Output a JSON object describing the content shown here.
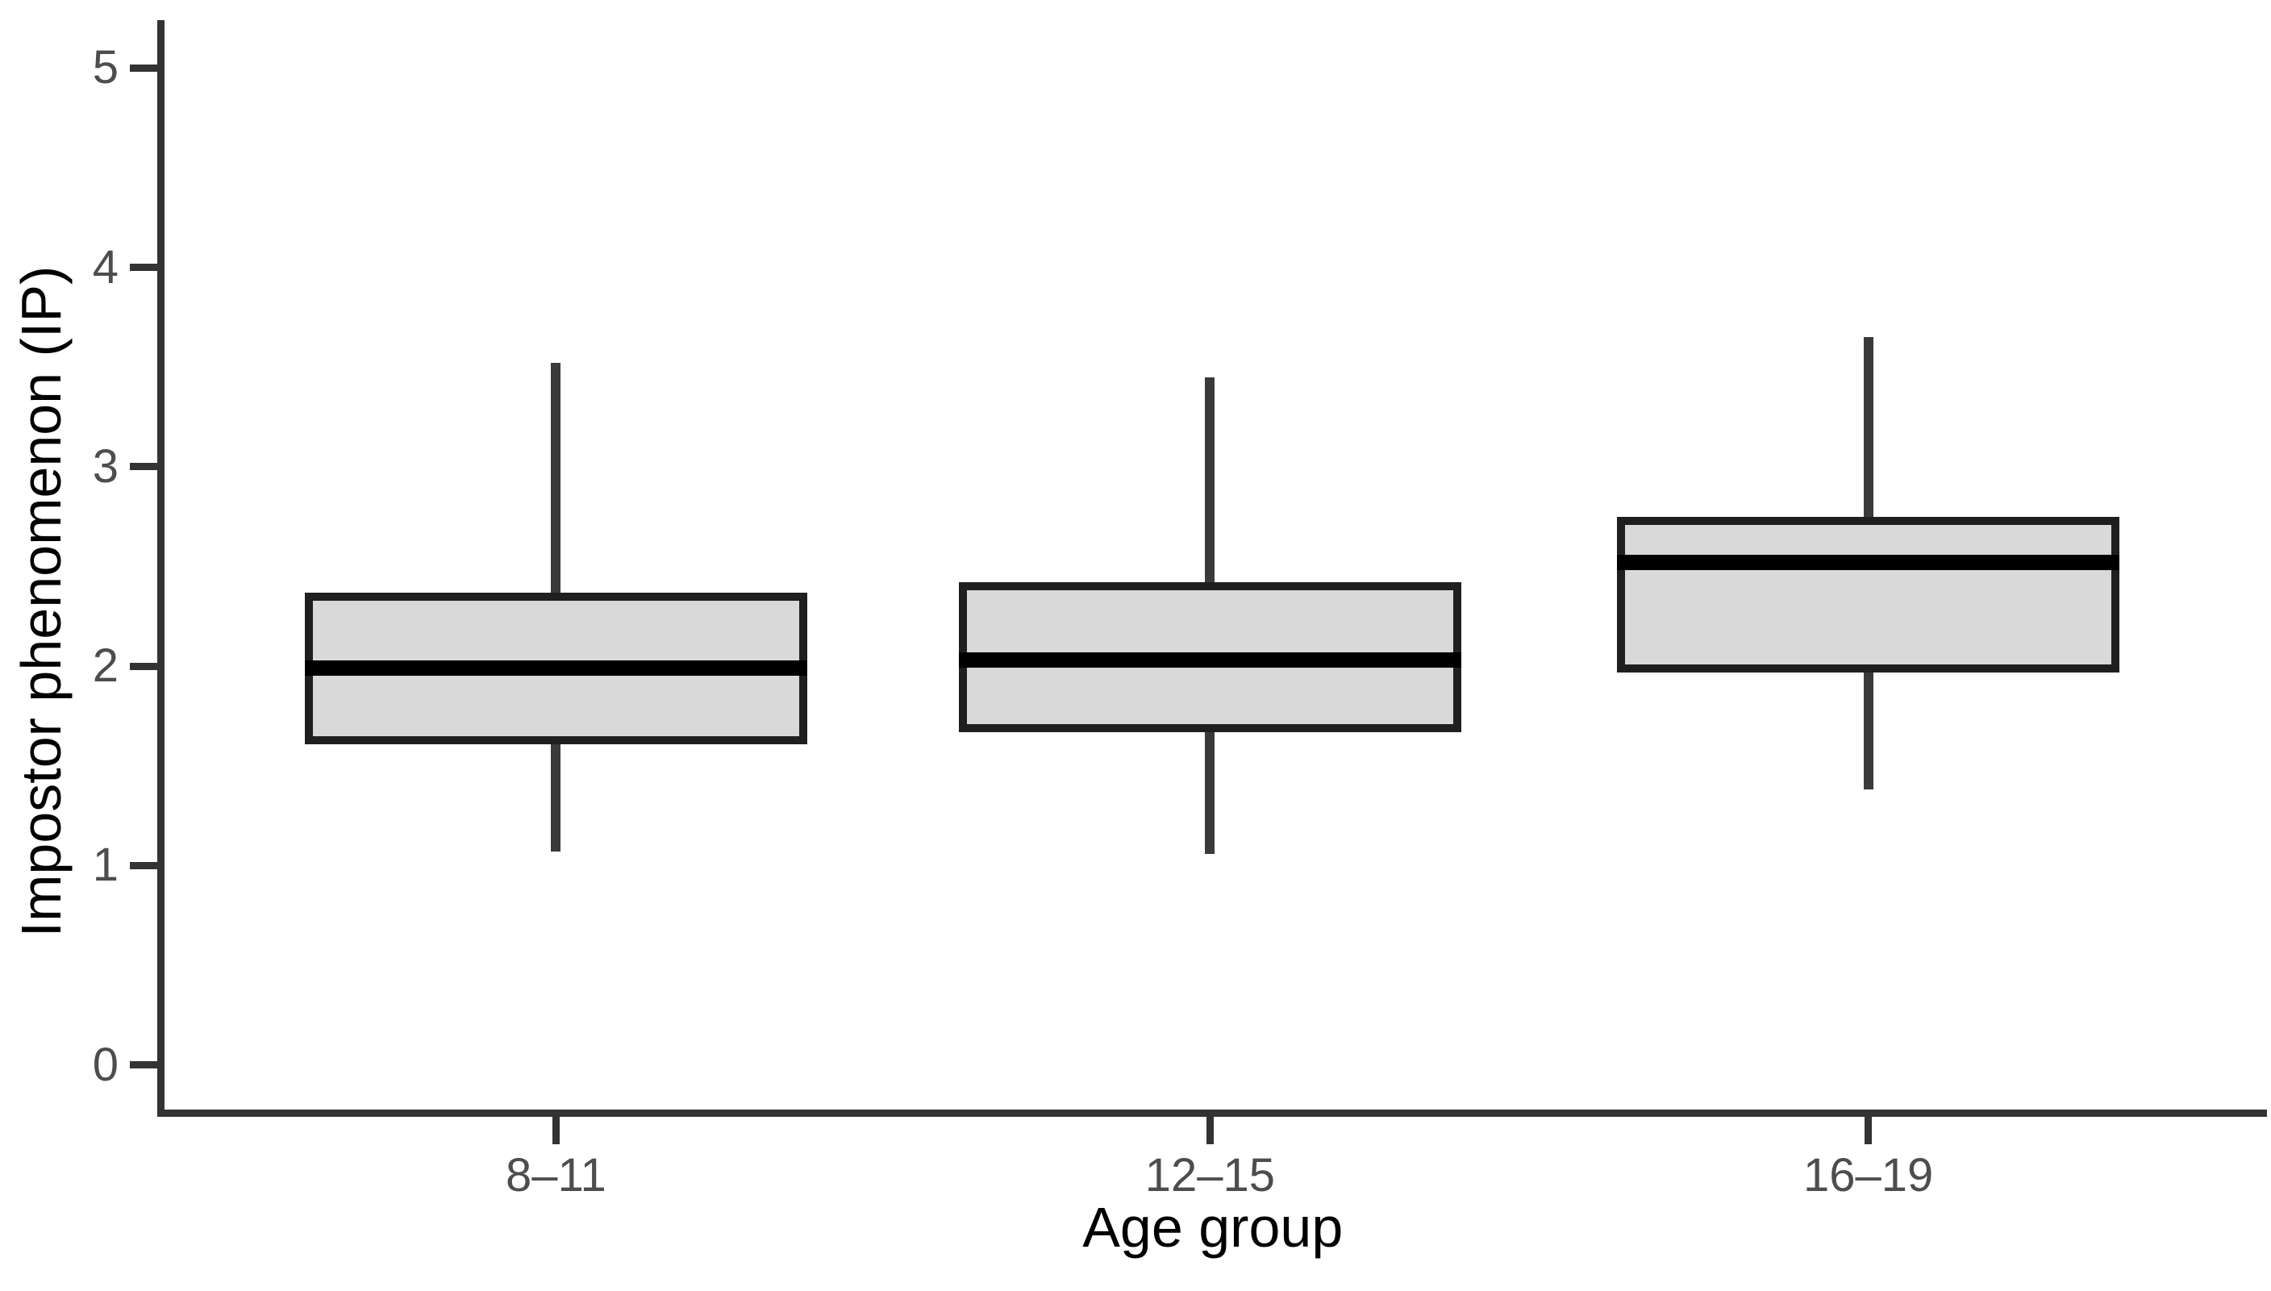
{
  "chart_data": {
    "type": "boxplot",
    "title": "",
    "xlabel": "Age group",
    "ylabel": "Impostor phenomenon (IP)",
    "categories": [
      "8–11",
      "12–15",
      "16–19"
    ],
    "y_ticks": [
      "0",
      "1",
      "2",
      "3",
      "4",
      "5"
    ],
    "ylim": [
      -0.26,
      5.24
    ],
    "grid": "off",
    "legend_position": "none",
    "series": [
      {
        "category": "8–11",
        "whisker_low": 1.07,
        "q1": 1.61,
        "median": 1.99,
        "q3": 2.37,
        "whisker_high": 3.52
      },
      {
        "category": "12–15",
        "whisker_low": 1.06,
        "q1": 1.67,
        "median": 2.03,
        "q3": 2.42,
        "whisker_high": 3.45
      },
      {
        "category": "16–19",
        "whisker_low": 1.38,
        "q1": 1.97,
        "median": 2.52,
        "q3": 2.75,
        "whisker_high": 3.65
      }
    ],
    "colors": {
      "box_fill": "#d9d9d9",
      "box_border": "#1f1f1f",
      "median": "#000000",
      "whisker": "#3a3a3a",
      "axis_line": "#333333",
      "tick_label": "#4d4d4d",
      "axis_title": "#000000",
      "background": "#ffffff"
    }
  }
}
